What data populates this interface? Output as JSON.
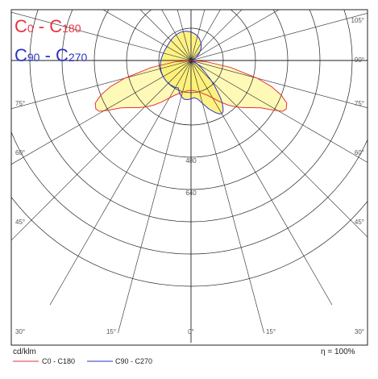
{
  "chart_data": {
    "type": "polar-luminous-intensity",
    "unit_label": "cd/klm",
    "efficiency_label": "η = 100%",
    "legend_title": [
      {
        "sub1": "0",
        "sep": " - C",
        "sub2": "180",
        "color": "#e8323c"
      },
      {
        "sub1": "90",
        "sep": " - C",
        "sub2": "270",
        "color": "#2b35c4"
      }
    ],
    "legend_bottom": [
      {
        "label": "C0 - C180",
        "color": "#e8323c"
      },
      {
        "label": "C90 - C270",
        "color": "#2b35c4"
      }
    ],
    "radial_ticks": [
      {
        "value": 480,
        "label": "480"
      },
      {
        "value": 640,
        "label": "640"
      }
    ],
    "r_max": 800,
    "angle_labels": {
      "left": [
        "30°",
        "45°",
        "60°",
        "75°"
      ],
      "right": [
        "30°",
        "45°",
        "60°",
        "75°",
        "90°",
        "105°"
      ],
      "bottom": [
        "15°",
        "0°",
        "15°"
      ]
    },
    "series": [
      {
        "name": "C0 - C180",
        "color": "#e8323c",
        "fill": "#fff8b0",
        "points_deg_cd": [
          [
            -90,
            0
          ],
          [
            -85,
            80
          ],
          [
            -80,
            200
          ],
          [
            -75,
            340
          ],
          [
            -72,
            420
          ],
          [
            -69,
            480
          ],
          [
            -66,
            520
          ],
          [
            -63,
            530
          ],
          [
            -61,
            520
          ],
          [
            -59,
            480
          ],
          [
            -56,
            420
          ],
          [
            -52,
            380
          ],
          [
            -48,
            350
          ],
          [
            -44,
            320
          ],
          [
            -40,
            290
          ],
          [
            -35,
            250
          ],
          [
            -30,
            215
          ],
          [
            -25,
            190
          ],
          [
            -20,
            175
          ],
          [
            -15,
            162
          ],
          [
            -10,
            155
          ],
          [
            -5,
            150
          ],
          [
            0,
            148
          ],
          [
            5,
            150
          ],
          [
            10,
            155
          ],
          [
            15,
            162
          ],
          [
            20,
            175
          ],
          [
            25,
            190
          ],
          [
            30,
            215
          ],
          [
            35,
            250
          ],
          [
            40,
            290
          ],
          [
            44,
            320
          ],
          [
            48,
            350
          ],
          [
            52,
            380
          ],
          [
            56,
            420
          ],
          [
            59,
            480
          ],
          [
            61,
            520
          ],
          [
            63,
            530
          ],
          [
            66,
            520
          ],
          [
            69,
            480
          ],
          [
            72,
            420
          ],
          [
            75,
            340
          ],
          [
            80,
            200
          ],
          [
            85,
            80
          ],
          [
            90,
            0
          ]
        ]
      },
      {
        "name": "C90 - C270",
        "color": "#2b35c4",
        "fill": "#fef070",
        "points_deg_cd": [
          [
            -25,
            150
          ],
          [
            -20,
            170
          ],
          [
            -15,
            185
          ],
          [
            -10,
            195
          ],
          [
            -5,
            195
          ],
          [
            0,
            190
          ],
          [
            5,
            185
          ],
          [
            10,
            195
          ],
          [
            15,
            220
          ],
          [
            20,
            255
          ],
          [
            25,
            285
          ],
          [
            28,
            300
          ],
          [
            30,
            305
          ],
          [
            32,
            300
          ],
          [
            34,
            285
          ],
          [
            36,
            265
          ],
          [
            38,
            240
          ],
          [
            40,
            210
          ],
          [
            43,
            170
          ],
          [
            46,
            130
          ],
          [
            50,
            90
          ],
          [
            55,
            60
          ],
          [
            62,
            32
          ],
          [
            70,
            15
          ],
          [
            80,
            5
          ],
          [
            90,
            0
          ],
          [
            100,
            4
          ],
          [
            110,
            15
          ],
          [
            120,
            30
          ],
          [
            130,
            52
          ],
          [
            140,
            78
          ],
          [
            150,
            100
          ],
          [
            160,
            118
          ],
          [
            170,
            132
          ],
          [
            180,
            142
          ],
          [
            190,
            148
          ],
          [
            200,
            150
          ],
          [
            210,
            148
          ],
          [
            220,
            144
          ],
          [
            230,
            140
          ],
          [
            240,
            138
          ],
          [
            250,
            140
          ],
          [
            260,
            144
          ],
          [
            270,
            150
          ],
          [
            280,
            155
          ],
          [
            290,
            158
          ],
          [
            300,
            160
          ],
          [
            310,
            160
          ],
          [
            320,
            158
          ],
          [
            330,
            155
          ],
          [
            335,
            150
          ]
        ]
      }
    ],
    "grid": true
  }
}
